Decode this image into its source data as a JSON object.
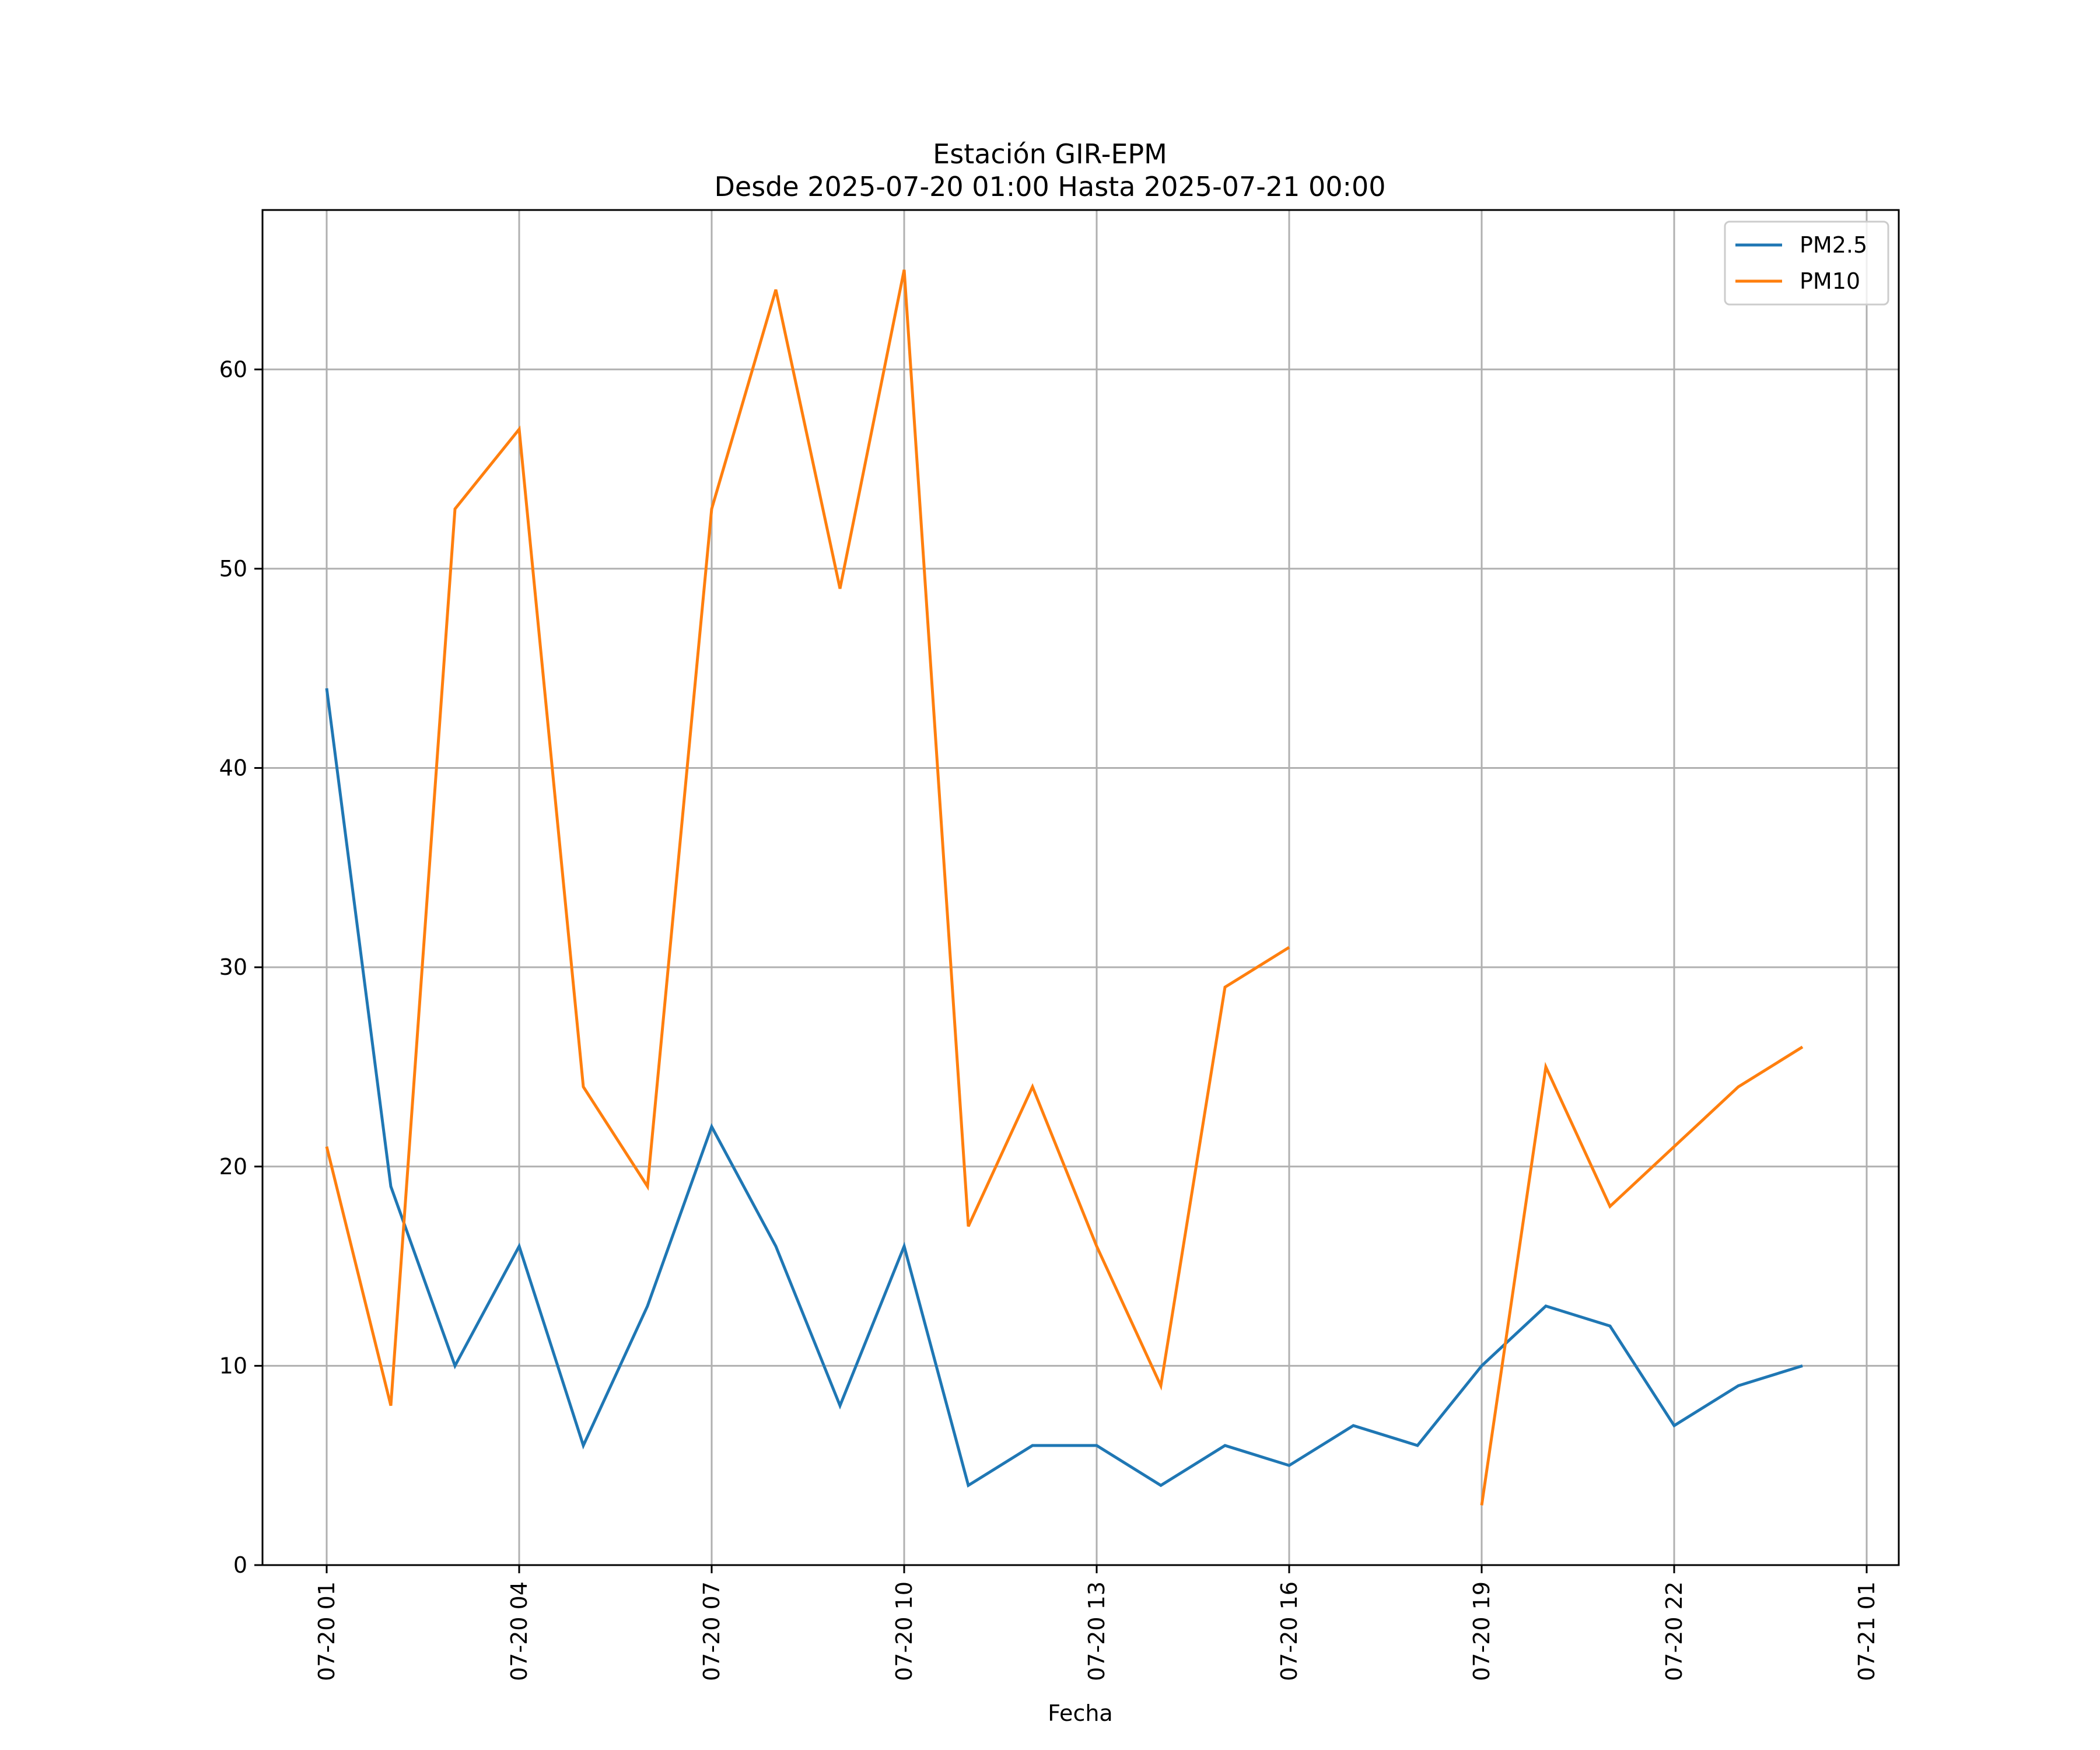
{
  "chart_data": {
    "type": "line",
    "title": "Estación GIR-EPM",
    "subtitle": "Desde 2025-07-20 01:00 Hasta 2025-07-21 00:00",
    "xlabel": "Fecha",
    "ylabel": "",
    "grid": true,
    "legend_position": "top-right",
    "x_hours": [
      1,
      2,
      3,
      4,
      5,
      6,
      7,
      8,
      9,
      10,
      11,
      12,
      13,
      14,
      15,
      16,
      17,
      18,
      19,
      20,
      21,
      22,
      23,
      24
    ],
    "x_dates": [
      "2025-07-20 01:00",
      "2025-07-20 02:00",
      "2025-07-20 03:00",
      "2025-07-20 04:00",
      "2025-07-20 05:00",
      "2025-07-20 06:00",
      "2025-07-20 07:00",
      "2025-07-20 08:00",
      "2025-07-20 09:00",
      "2025-07-20 10:00",
      "2025-07-20 11:00",
      "2025-07-20 12:00",
      "2025-07-20 13:00",
      "2025-07-20 14:00",
      "2025-07-20 15:00",
      "2025-07-20 16:00",
      "2025-07-20 17:00",
      "2025-07-20 18:00",
      "2025-07-20 19:00",
      "2025-07-20 20:00",
      "2025-07-20 21:00",
      "2025-07-20 22:00",
      "2025-07-20 23:00",
      "2025-07-21 00:00"
    ],
    "xlim": [
      "2025-07-20 00:00",
      "2025-07-21 01:30"
    ],
    "x_ticks": [
      {
        "label": "07-20 01",
        "hour": 1
      },
      {
        "label": "07-20 04",
        "hour": 4
      },
      {
        "label": "07-20 07",
        "hour": 7
      },
      {
        "label": "07-20 10",
        "hour": 10
      },
      {
        "label": "07-20 13",
        "hour": 13
      },
      {
        "label": "07-20 16",
        "hour": 16
      },
      {
        "label": "07-20 19",
        "hour": 19
      },
      {
        "label": "07-20 22",
        "hour": 22
      },
      {
        "label": "07-21 01",
        "hour": 25
      }
    ],
    "y_ticks": [
      0,
      10,
      20,
      30,
      40,
      50,
      60
    ],
    "ylim": [
      0,
      68
    ],
    "series": [
      {
        "name": "PM2.5",
        "color": "#1f77b4",
        "values": [
          44,
          19,
          10,
          16,
          6,
          13,
          22,
          16,
          8,
          16,
          4,
          6,
          6,
          4,
          6,
          5,
          7,
          6,
          10,
          13,
          12,
          7,
          9,
          10
        ]
      },
      {
        "name": "PM10",
        "color": "#ff7f0e",
        "values": [
          21,
          8,
          53,
          57,
          24,
          19,
          53,
          64,
          49,
          65,
          17,
          24,
          16,
          9,
          29,
          31,
          null,
          null,
          3,
          25,
          18,
          21,
          24,
          26
        ]
      }
    ]
  }
}
